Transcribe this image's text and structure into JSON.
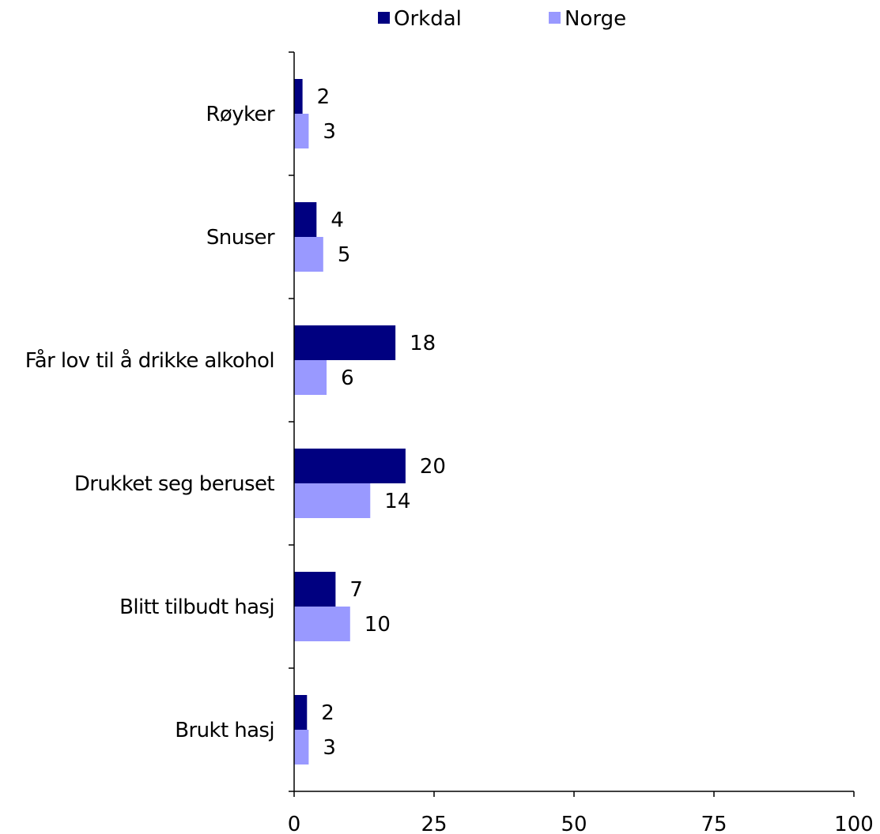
{
  "chart_data": {
    "type": "bar",
    "orientation": "horizontal",
    "title": "",
    "xlabel": "",
    "ylabel": "",
    "categories": [
      "Røyker",
      "Snuser",
      "Får lov til å drikke alkohol",
      "Drukket seg beruset",
      "Blitt tilbudt hasj",
      "Brukt hasj"
    ],
    "series": [
      {
        "name": "Orkdal",
        "color": "#000080",
        "values": [
          2,
          4,
          18,
          20,
          7,
          2
        ],
        "plotted_values": [
          1.5,
          4.0,
          18.1,
          19.9,
          7.4,
          2.3
        ]
      },
      {
        "name": "Norge",
        "color": "#9999ff",
        "values": [
          3,
          5,
          6,
          14,
          10,
          3
        ],
        "plotted_values": [
          2.6,
          5.2,
          5.8,
          13.6,
          10.0,
          2.6
        ]
      }
    ],
    "xlim": [
      0,
      100
    ],
    "xticks": [
      "0",
      "25",
      "50",
      "75",
      "100"
    ],
    "grid": false,
    "legend": "top-center"
  }
}
